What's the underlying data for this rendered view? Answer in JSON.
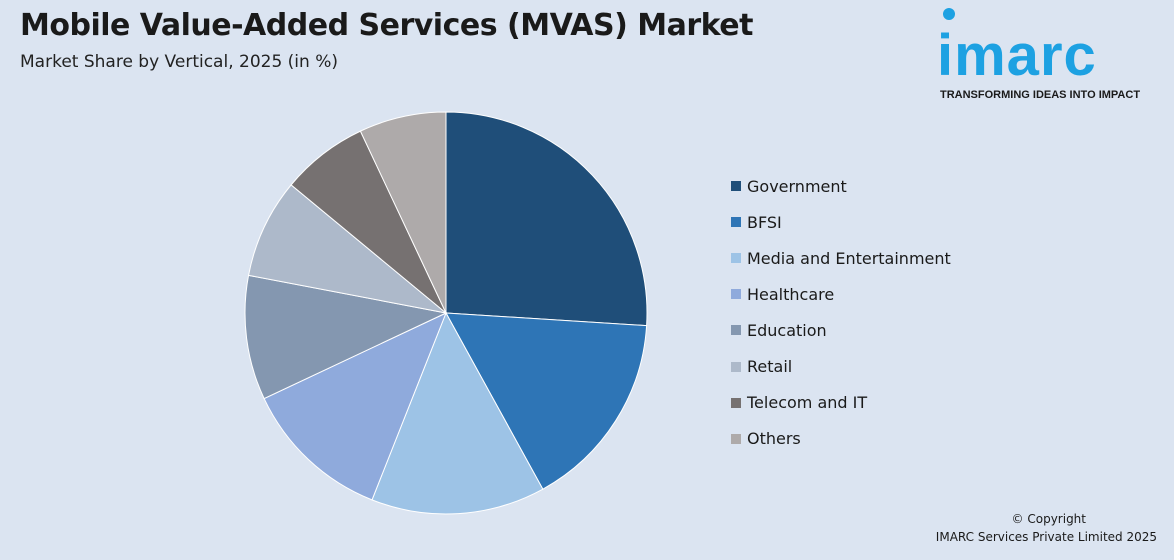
{
  "title": "Mobile Value-Added Services (MVAS) Market",
  "subtitle": "Market Share by Vertical, 2025 (in %)",
  "logo": {
    "word": "imarc",
    "tagline": "TRANSFORMING IDEAS INTO IMPACT",
    "color": "#1da1e2"
  },
  "footer": {
    "copyright": "© Copyright",
    "company": "IMARC Services Private Limited 2025"
  },
  "chart_data": {
    "type": "pie",
    "unit": "%",
    "categories": [
      "Government",
      "BFSI",
      "Media and Entertainment",
      "Healthcare",
      "Education",
      "Retail",
      "Telecom and IT",
      "Others"
    ],
    "values": [
      26,
      16,
      14,
      12,
      10,
      8,
      7,
      7
    ],
    "colors": [
      "#1f4e79",
      "#2e75b6",
      "#9dc3e6",
      "#8faadc",
      "#8497b0",
      "#adb9ca",
      "#767171",
      "#aeaaaa"
    ],
    "start_angle": "12 o'clock, clockwise",
    "legend_position": "right"
  }
}
